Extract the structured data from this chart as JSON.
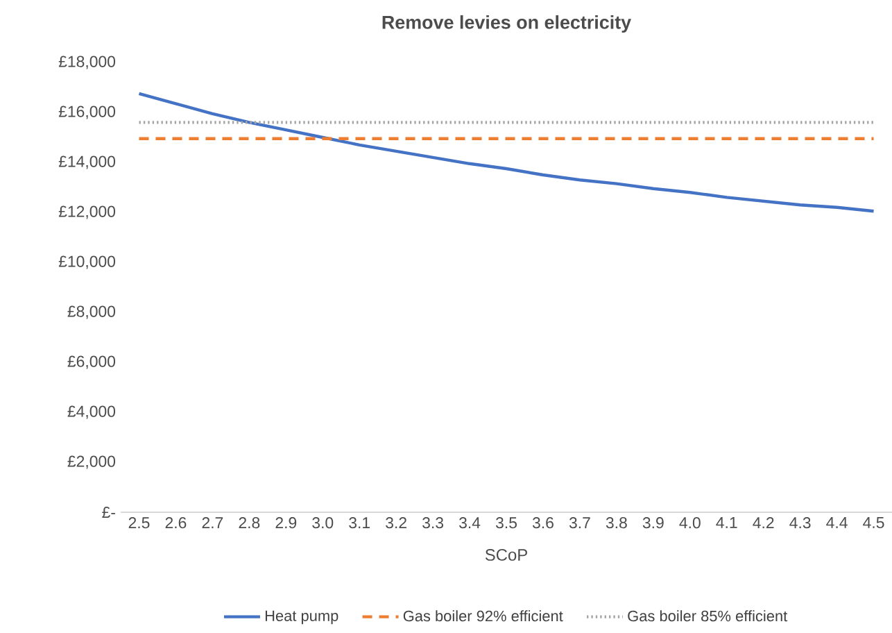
{
  "chart_data": {
    "type": "line",
    "title": "Remove levies on electricity",
    "xlabel": "SCoP",
    "categories": [
      "2.5",
      "2.6",
      "2.7",
      "2.8",
      "2.9",
      "3.0",
      "3.1",
      "3.2",
      "3.3",
      "3.4",
      "3.5",
      "3.6",
      "3.7",
      "3.8",
      "3.9",
      "4.0",
      "4.1",
      "4.2",
      "4.3",
      "4.4",
      "4.5"
    ],
    "ylim": [
      0,
      18000
    ],
    "yticks": [
      {
        "value": 0,
        "label": "£-"
      },
      {
        "value": 2000,
        "label": "£2,000"
      },
      {
        "value": 4000,
        "label": "£4,000"
      },
      {
        "value": 6000,
        "label": "£6,000"
      },
      {
        "value": 8000,
        "label": "£8,000"
      },
      {
        "value": 10000,
        "label": "£10,000"
      },
      {
        "value": 12000,
        "label": "£12,000"
      },
      {
        "value": 14000,
        "label": "£14,000"
      },
      {
        "value": 16000,
        "label": "£16,000"
      },
      {
        "value": 18000,
        "label": "£18,000"
      }
    ],
    "legend": "bottom",
    "series": [
      {
        "name": "Heat pump",
        "color": "#4472c4",
        "line_style": "solid",
        "values": [
          16750,
          16350,
          15950,
          15600,
          15300,
          15000,
          14700,
          14450,
          14200,
          13950,
          13750,
          13500,
          13300,
          13150,
          12950,
          12800,
          12600,
          12450,
          12300,
          12200,
          12050
        ]
      },
      {
        "name": "Gas boiler 92% efficient",
        "color": "#ed7d31",
        "line_style": "dashed",
        "values": [
          14950,
          14950,
          14950,
          14950,
          14950,
          14950,
          14950,
          14950,
          14950,
          14950,
          14950,
          14950,
          14950,
          14950,
          14950,
          14950,
          14950,
          14950,
          14950,
          14950,
          14950
        ]
      },
      {
        "name": "Gas boiler 85% efficient",
        "color": "#a5a5a5",
        "line_style": "dotted",
        "values": [
          15600,
          15600,
          15600,
          15600,
          15600,
          15600,
          15600,
          15600,
          15600,
          15600,
          15600,
          15600,
          15600,
          15600,
          15600,
          15600,
          15600,
          15600,
          15600,
          15600,
          15600
        ]
      }
    ]
  }
}
